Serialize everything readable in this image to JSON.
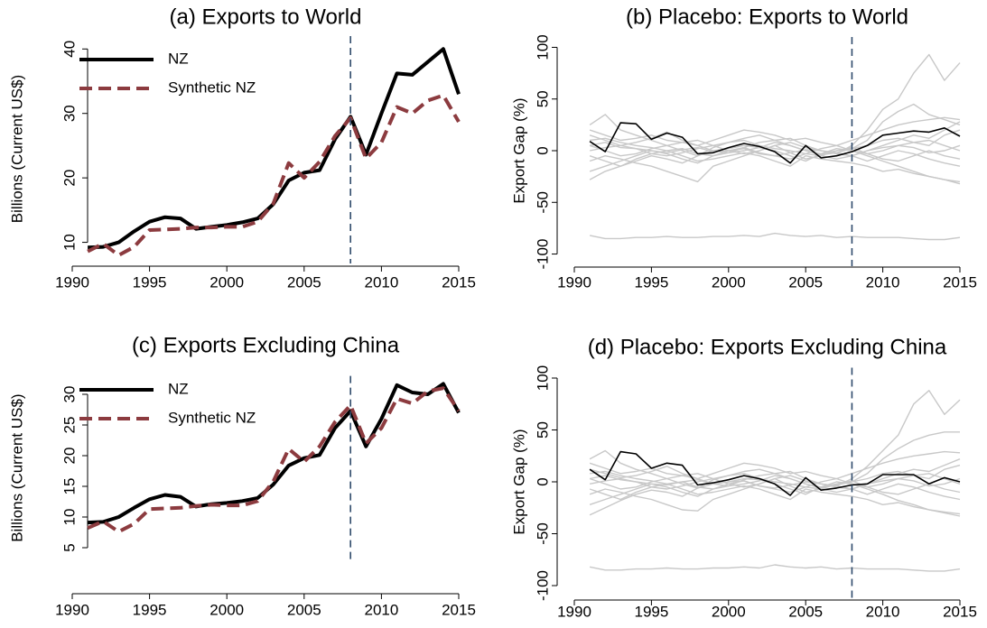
{
  "chart_data": [
    {
      "type": "line",
      "title": "(a) Exports to World",
      "ylabel": "Billions (Current US$)",
      "x": [
        1991,
        1992,
        1993,
        1994,
        1995,
        1996,
        1997,
        1998,
        1999,
        2000,
        2001,
        2002,
        2003,
        2004,
        2005,
        2006,
        2007,
        2008,
        2009,
        2010,
        2011,
        2012,
        2013,
        2014,
        2015
      ],
      "xlim": [
        1990,
        2015
      ],
      "xticks": [
        1990,
        1995,
        2000,
        2005,
        2010,
        2015
      ],
      "ylim": [
        7,
        42
      ],
      "yticks": [
        10,
        20,
        30,
        40
      ],
      "vline": 2008,
      "legend": "top-left",
      "series": [
        {
          "name": "NZ",
          "color": "#000000",
          "values": [
            9.2,
            9.3,
            10.0,
            11.7,
            13.2,
            13.9,
            13.7,
            12.1,
            12.4,
            12.7,
            13.1,
            13.7,
            15.9,
            19.6,
            20.8,
            21.2,
            26.0,
            29.5,
            23.6,
            30.0,
            36.2,
            36.0,
            38.0,
            40.0,
            33.0
          ]
        },
        {
          "name": "Synthetic NZ",
          "color": "#8c3b3f",
          "dash": true,
          "values": [
            8.6,
            9.8,
            8.0,
            9.3,
            11.9,
            12.0,
            12.1,
            12.3,
            12.3,
            12.4,
            12.4,
            13.2,
            16.0,
            22.3,
            20.0,
            22.5,
            26.5,
            29.3,
            23.0,
            25.5,
            31.0,
            30.0,
            32.0,
            32.8,
            28.7
          ]
        }
      ]
    },
    {
      "type": "line",
      "title": "(b) Placebo: Exports to World",
      "ylabel": "Export Gap (%)",
      "x": [
        1991,
        1992,
        1993,
        1994,
        1995,
        1996,
        1997,
        1998,
        1999,
        2000,
        2001,
        2002,
        2003,
        2004,
        2005,
        2006,
        2007,
        2008,
        2009,
        2010,
        2011,
        2012,
        2013,
        2014,
        2015
      ],
      "xlim": [
        1990,
        2015
      ],
      "xticks": [
        1990,
        1995,
        2000,
        2005,
        2010,
        2015
      ],
      "ylim": [
        -110,
        110
      ],
      "yticks": [
        -100,
        -50,
        0,
        50,
        100
      ],
      "vline": 2008,
      "series": [
        {
          "color": "#c8c8c8",
          "values": [
            -82,
            -85,
            -85,
            -84,
            -84,
            -83,
            -84,
            -84,
            -83,
            -83,
            -82,
            -83,
            -80,
            -82,
            -83,
            -82,
            -84,
            -83,
            -84,
            -84,
            -84,
            -85,
            -86,
            -86,
            -84
          ]
        },
        {
          "color": "#c8c8c8",
          "values": [
            5,
            8,
            3,
            2,
            0,
            -2,
            1,
            3,
            -1,
            0,
            2,
            -3,
            -5,
            -2,
            1,
            0,
            -3,
            5,
            20,
            40,
            50,
            75,
            93,
            68,
            85
          ]
        },
        {
          "color": "#c8c8c8",
          "values": [
            25,
            35,
            20,
            15,
            10,
            5,
            0,
            -5,
            3,
            8,
            12,
            15,
            10,
            5,
            0,
            -4,
            -2,
            2,
            10,
            28,
            38,
            45,
            35,
            30,
            25
          ]
        },
        {
          "color": "#c8c8c8",
          "values": [
            -28,
            -20,
            -15,
            -10,
            -5,
            -8,
            -12,
            -5,
            0,
            2,
            5,
            3,
            0,
            -5,
            -10,
            -3,
            2,
            0,
            -5,
            -10,
            -15,
            -20,
            -25,
            -28,
            -32
          ]
        },
        {
          "color": "#c8c8c8",
          "values": [
            15,
            10,
            5,
            8,
            12,
            18,
            10,
            5,
            0,
            -2,
            3,
            8,
            10,
            12,
            5,
            0,
            -3,
            -5,
            0,
            5,
            10,
            15,
            12,
            20,
            28
          ]
        },
        {
          "color": "#c8c8c8",
          "values": [
            -10,
            -5,
            -8,
            -12,
            -15,
            -20,
            -25,
            -30,
            -15,
            -10,
            -5,
            0,
            5,
            -2,
            -8,
            -5,
            0,
            3,
            -3,
            -8,
            -10,
            -5,
            0,
            -5,
            -8
          ]
        },
        {
          "color": "#c8c8c8",
          "values": [
            0,
            3,
            5,
            2,
            -3,
            -5,
            -2,
            2,
            5,
            8,
            10,
            5,
            2,
            0,
            -3,
            -5,
            -8,
            -5,
            0,
            3,
            5,
            8,
            10,
            5,
            0
          ]
        },
        {
          "color": "#c8c8c8",
          "values": [
            20,
            15,
            10,
            12,
            15,
            10,
            8,
            5,
            10,
            15,
            20,
            18,
            15,
            10,
            12,
            8,
            5,
            10,
            15,
            20,
            25,
            28,
            30,
            32,
            30
          ]
        },
        {
          "color": "#c8c8c8",
          "values": [
            -5,
            -10,
            -15,
            -8,
            -3,
            0,
            -5,
            -10,
            -8,
            -5,
            -2,
            -5,
            -10,
            -15,
            -5,
            -8,
            -10,
            -12,
            -15,
            -20,
            -18,
            -22,
            -25,
            -28,
            -30
          ]
        },
        {
          "color": "#c8c8c8",
          "values": [
            5,
            0,
            -5,
            -3,
            2,
            5,
            8,
            10,
            5,
            0,
            -3,
            0,
            5,
            8,
            3,
            0,
            -2,
            -5,
            -10,
            -5,
            0,
            -3,
            -8,
            -12,
            -15
          ]
        },
        {
          "color": "#c8c8c8",
          "values": [
            -20,
            -15,
            -10,
            -5,
            0,
            -3,
            -8,
            -12,
            -5,
            0,
            3,
            -2,
            -5,
            -8,
            -3,
            2,
            5,
            0,
            -3,
            0,
            5,
            3,
            -2,
            0,
            5
          ]
        },
        {
          "color": "#c8c8c8",
          "values": [
            10,
            12,
            8,
            5,
            3,
            0,
            2,
            -3,
            -5,
            -2,
            0,
            3,
            8,
            5,
            0,
            -3,
            0,
            2,
            5,
            10,
            12,
            8,
            5,
            15,
            20
          ]
        },
        {
          "color": "#000000",
          "values": [
            9,
            -1,
            27,
            26,
            11,
            17,
            13,
            -3,
            -2,
            3,
            7,
            4,
            -1,
            -12,
            5,
            -7,
            -5,
            -1,
            5,
            15,
            17,
            19,
            18,
            22,
            14
          ]
        }
      ]
    },
    {
      "type": "line",
      "title": "(c) Exports Excluding China",
      "ylabel": "Billions (Current US$)",
      "x": [
        1991,
        1992,
        1993,
        1994,
        1995,
        1996,
        1997,
        1998,
        1999,
        2000,
        2001,
        2002,
        2003,
        2004,
        2005,
        2006,
        2007,
        2008,
        2009,
        2010,
        2011,
        2012,
        2013,
        2014,
        2015
      ],
      "xlim": [
        1990,
        2015
      ],
      "xticks": [
        1990,
        1995,
        2000,
        2005,
        2010,
        2015
      ],
      "ylim": [
        3,
        33
      ],
      "yticks": [
        5,
        10,
        15,
        20,
        25,
        30
      ],
      "vline": 2008,
      "legend": "top-left",
      "series": [
        {
          "name": "NZ",
          "color": "#000000",
          "values": [
            9.1,
            9.2,
            10.0,
            11.5,
            12.9,
            13.6,
            13.3,
            11.7,
            12.1,
            12.3,
            12.6,
            13.1,
            15.3,
            18.4,
            19.6,
            20.1,
            24.5,
            27.3,
            21.5,
            26.0,
            31.5,
            30.3,
            30.0,
            31.7,
            27.0
          ]
        },
        {
          "name": "Synthetic NZ",
          "color": "#8c3b3f",
          "dash": true,
          "values": [
            8.2,
            9.3,
            7.6,
            8.9,
            11.3,
            11.4,
            11.5,
            11.8,
            12.0,
            11.9,
            11.9,
            12.6,
            15.8,
            21.1,
            19.0,
            21.5,
            25.5,
            28.2,
            22.0,
            24.5,
            29.3,
            28.5,
            30.5,
            31.0,
            27.3
          ]
        }
      ]
    },
    {
      "type": "line",
      "title": "(d) Placebo: Exports Excluding China",
      "ylabel": "Export Gap (%)",
      "x": [
        1991,
        1992,
        1993,
        1994,
        1995,
        1996,
        1997,
        1998,
        1999,
        2000,
        2001,
        2002,
        2003,
        2004,
        2005,
        2006,
        2007,
        2008,
        2009,
        2010,
        2011,
        2012,
        2013,
        2014,
        2015
      ],
      "xlim": [
        1990,
        2015
      ],
      "xticks": [
        1990,
        1995,
        2000,
        2005,
        2010,
        2015
      ],
      "ylim": [
        -110,
        110
      ],
      "yticks": [
        -100,
        -50,
        0,
        50,
        100
      ],
      "vline": 2008,
      "series": [
        {
          "color": "#c8c8c8",
          "values": [
            -82,
            -85,
            -85,
            -84,
            -84,
            -83,
            -84,
            -84,
            -83,
            -83,
            -82,
            -83,
            -80,
            -82,
            -83,
            -82,
            -84,
            -83,
            -84,
            -84,
            -84,
            -85,
            -86,
            -86,
            -84
          ]
        },
        {
          "color": "#c8c8c8",
          "values": [
            3,
            6,
            2,
            0,
            -2,
            -3,
            0,
            2,
            -2,
            0,
            1,
            -4,
            -6,
            -3,
            0,
            -2,
            -4,
            3,
            15,
            30,
            45,
            75,
            88,
            65,
            79
          ]
        },
        {
          "color": "#c8c8c8",
          "values": [
            22,
            30,
            18,
            12,
            8,
            3,
            -2,
            -6,
            2,
            6,
            10,
            12,
            8,
            3,
            -2,
            -6,
            -3,
            0,
            8,
            22,
            32,
            40,
            45,
            48,
            48
          ]
        },
        {
          "color": "#c8c8c8",
          "values": [
            -32,
            -25,
            -18,
            -12,
            -8,
            -10,
            -14,
            -6,
            -2,
            0,
            3,
            2,
            -2,
            -7,
            -12,
            -5,
            0,
            -2,
            -7,
            -12,
            -18,
            -22,
            -27,
            -30,
            -33
          ]
        },
        {
          "color": "#c8c8c8",
          "values": [
            12,
            8,
            4,
            6,
            10,
            15,
            8,
            3,
            -2,
            -4,
            2,
            6,
            8,
            10,
            3,
            -2,
            -5,
            -7,
            -2,
            3,
            8,
            12,
            10,
            16,
            22
          ]
        },
        {
          "color": "#c8c8c8",
          "values": [
            -12,
            -7,
            -10,
            -14,
            -17,
            -22,
            -27,
            -28,
            -17,
            -12,
            -7,
            -2,
            3,
            -4,
            -10,
            -7,
            -2,
            1,
            -5,
            -10,
            -12,
            -7,
            -2,
            -7,
            -10
          ]
        },
        {
          "color": "#c8c8c8",
          "values": [
            -2,
            1,
            3,
            0,
            -5,
            -7,
            -4,
            0,
            3,
            6,
            8,
            3,
            0,
            -2,
            -5,
            -7,
            -10,
            -7,
            -2,
            1,
            3,
            6,
            8,
            3,
            -2
          ]
        },
        {
          "color": "#c8c8c8",
          "values": [
            18,
            13,
            8,
            10,
            13,
            8,
            6,
            3,
            8,
            13,
            18,
            16,
            13,
            8,
            10,
            6,
            3,
            8,
            13,
            18,
            22,
            25,
            27,
            29,
            28
          ]
        },
        {
          "color": "#c8c8c8",
          "values": [
            -7,
            -12,
            -17,
            -10,
            -5,
            -2,
            -7,
            -12,
            -10,
            -7,
            -4,
            -7,
            -12,
            -17,
            -7,
            -10,
            -12,
            -14,
            -17,
            -22,
            -20,
            -24,
            -27,
            -29,
            -31
          ]
        },
        {
          "color": "#c8c8c8",
          "values": [
            3,
            -2,
            -7,
            -5,
            0,
            3,
            6,
            8,
            3,
            -2,
            -5,
            -2,
            3,
            6,
            1,
            -2,
            -4,
            -7,
            -12,
            -7,
            -2,
            -5,
            -10,
            -14,
            -17
          ]
        },
        {
          "color": "#c8c8c8",
          "values": [
            -22,
            -17,
            -12,
            -7,
            -2,
            -5,
            -10,
            -14,
            -7,
            -2,
            1,
            -4,
            -7,
            -10,
            -5,
            0,
            3,
            -2,
            -5,
            -2,
            3,
            1,
            -4,
            -2,
            3
          ]
        },
        {
          "color": "#c8c8c8",
          "values": [
            8,
            10,
            6,
            3,
            1,
            -2,
            0,
            -5,
            -7,
            -4,
            -2,
            1,
            6,
            3,
            -2,
            -5,
            -2,
            0,
            3,
            8,
            10,
            6,
            3,
            12,
            16
          ]
        },
        {
          "color": "#000000",
          "values": [
            12,
            2,
            29,
            27,
            13,
            18,
            16,
            -3,
            -1,
            2,
            6,
            3,
            -2,
            -13,
            4,
            -8,
            -6,
            -3,
            -2,
            7,
            7,
            7,
            -2,
            4,
            0
          ]
        }
      ]
    }
  ]
}
